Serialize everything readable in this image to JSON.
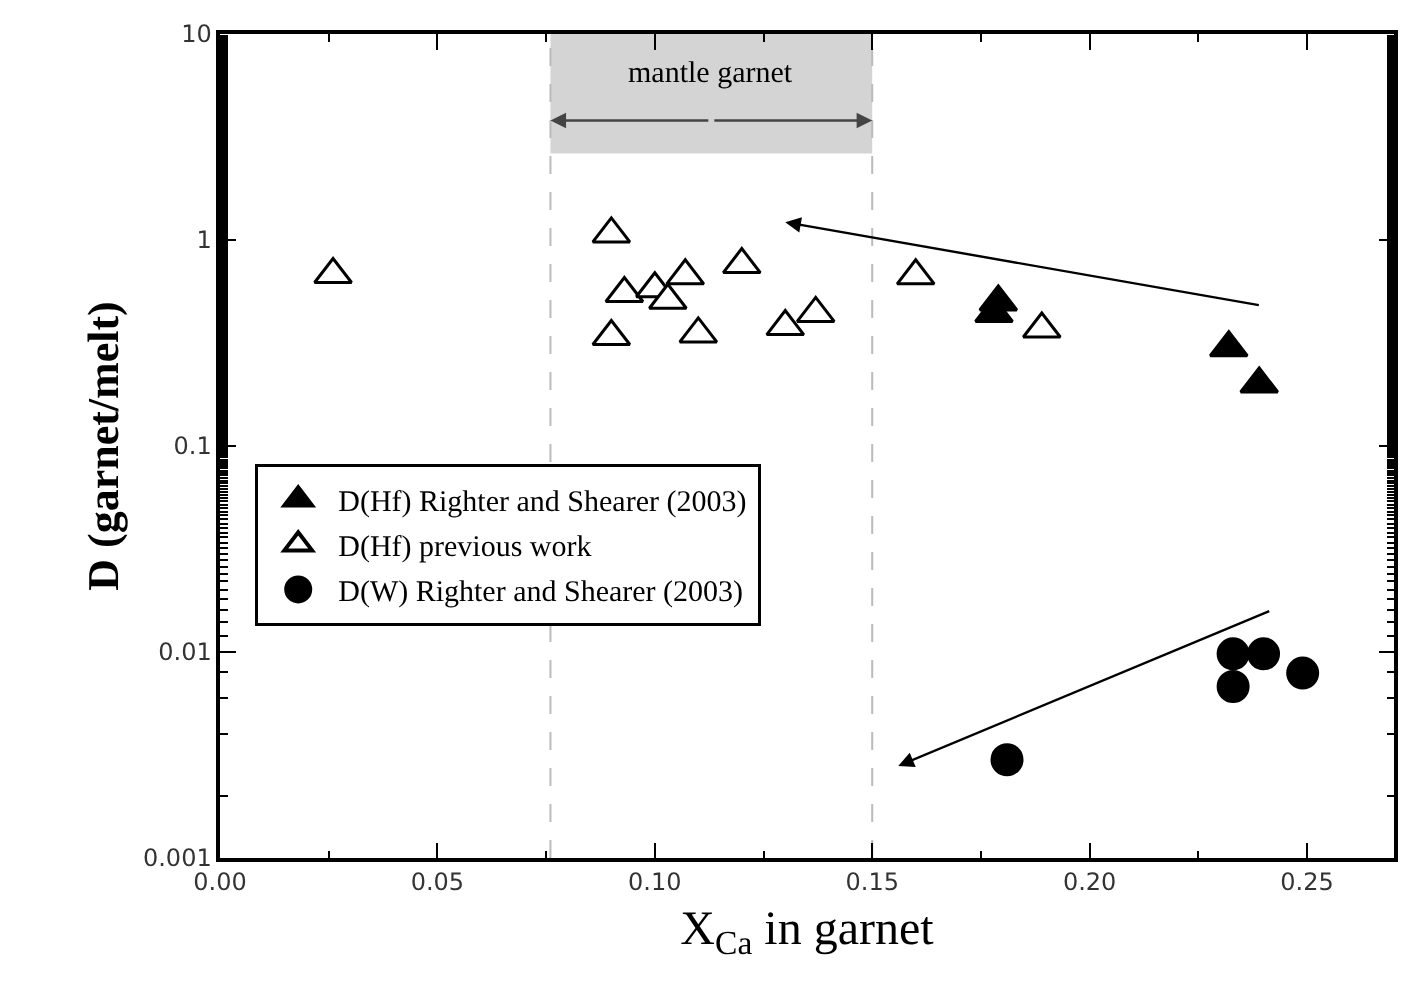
{
  "chart_data": {
    "type": "scatter",
    "xlabel": "X$_{Ca}$ in garnet",
    "ylabel": "D (garnet/melt)",
    "xlim": [
      0,
      0.27
    ],
    "xticks": [
      {
        "value": 0,
        "label": "0.00"
      },
      {
        "value": 0.05,
        "label": "0.05"
      },
      {
        "value": 0.1,
        "label": "0.10"
      },
      {
        "value": 0.15,
        "label": "0.15"
      },
      {
        "value": 0.2,
        "label": "0.20"
      },
      {
        "value": 0.25,
        "label": "0.25"
      }
    ],
    "ylim": [
      0.001,
      10
    ],
    "yticks": [
      0.001,
      0.01,
      0.1,
      1,
      10
    ],
    "log": "y",
    "grid": false,
    "legend": "left",
    "bands": [
      {
        "axis": "x",
        "from": 0.076,
        "to": 0.15,
        "label": "mantle garnet",
        "color": "#d4d4d4"
      }
    ],
    "ref_lines": [
      {
        "axis": "x",
        "value": 0.076,
        "color": "#bbbbbb",
        "line_style": "dashed"
      },
      {
        "axis": "x",
        "value": 0.15,
        "color": "#bbbbbb",
        "line_style": "dashed"
      }
    ],
    "series": [
      {
        "name": "D(Hf) Righter and Shearer (2003)",
        "color": "#000000",
        "marker": "triangle",
        "x": [
          0.178,
          0.179,
          0.232,
          0.239
        ],
        "values": [
          0.44,
          0.5,
          0.3,
          0.2
        ]
      },
      {
        "name": "D(Hf) previous work",
        "color": "#ffffff",
        "marker": "triangle",
        "x": [
          0.026,
          0.09,
          0.093,
          0.09,
          0.1,
          0.103,
          0.107,
          0.11,
          0.12,
          0.13,
          0.137,
          0.16,
          0.189
        ],
        "values": [
          0.68,
          1.07,
          0.55,
          0.34,
          0.58,
          0.51,
          0.67,
          0.35,
          0.76,
          0.38,
          0.44,
          0.67,
          0.37
        ]
      },
      {
        "name": "D(W) Righter and Shearer (2003)",
        "color": "#000000",
        "marker": "circle",
        "x": [
          0.181,
          0.233,
          0.233,
          0.24,
          0.249
        ],
        "values": [
          0.003,
          0.0098,
          0.0068,
          0.0098,
          0.0079
        ]
      }
    ]
  }
}
